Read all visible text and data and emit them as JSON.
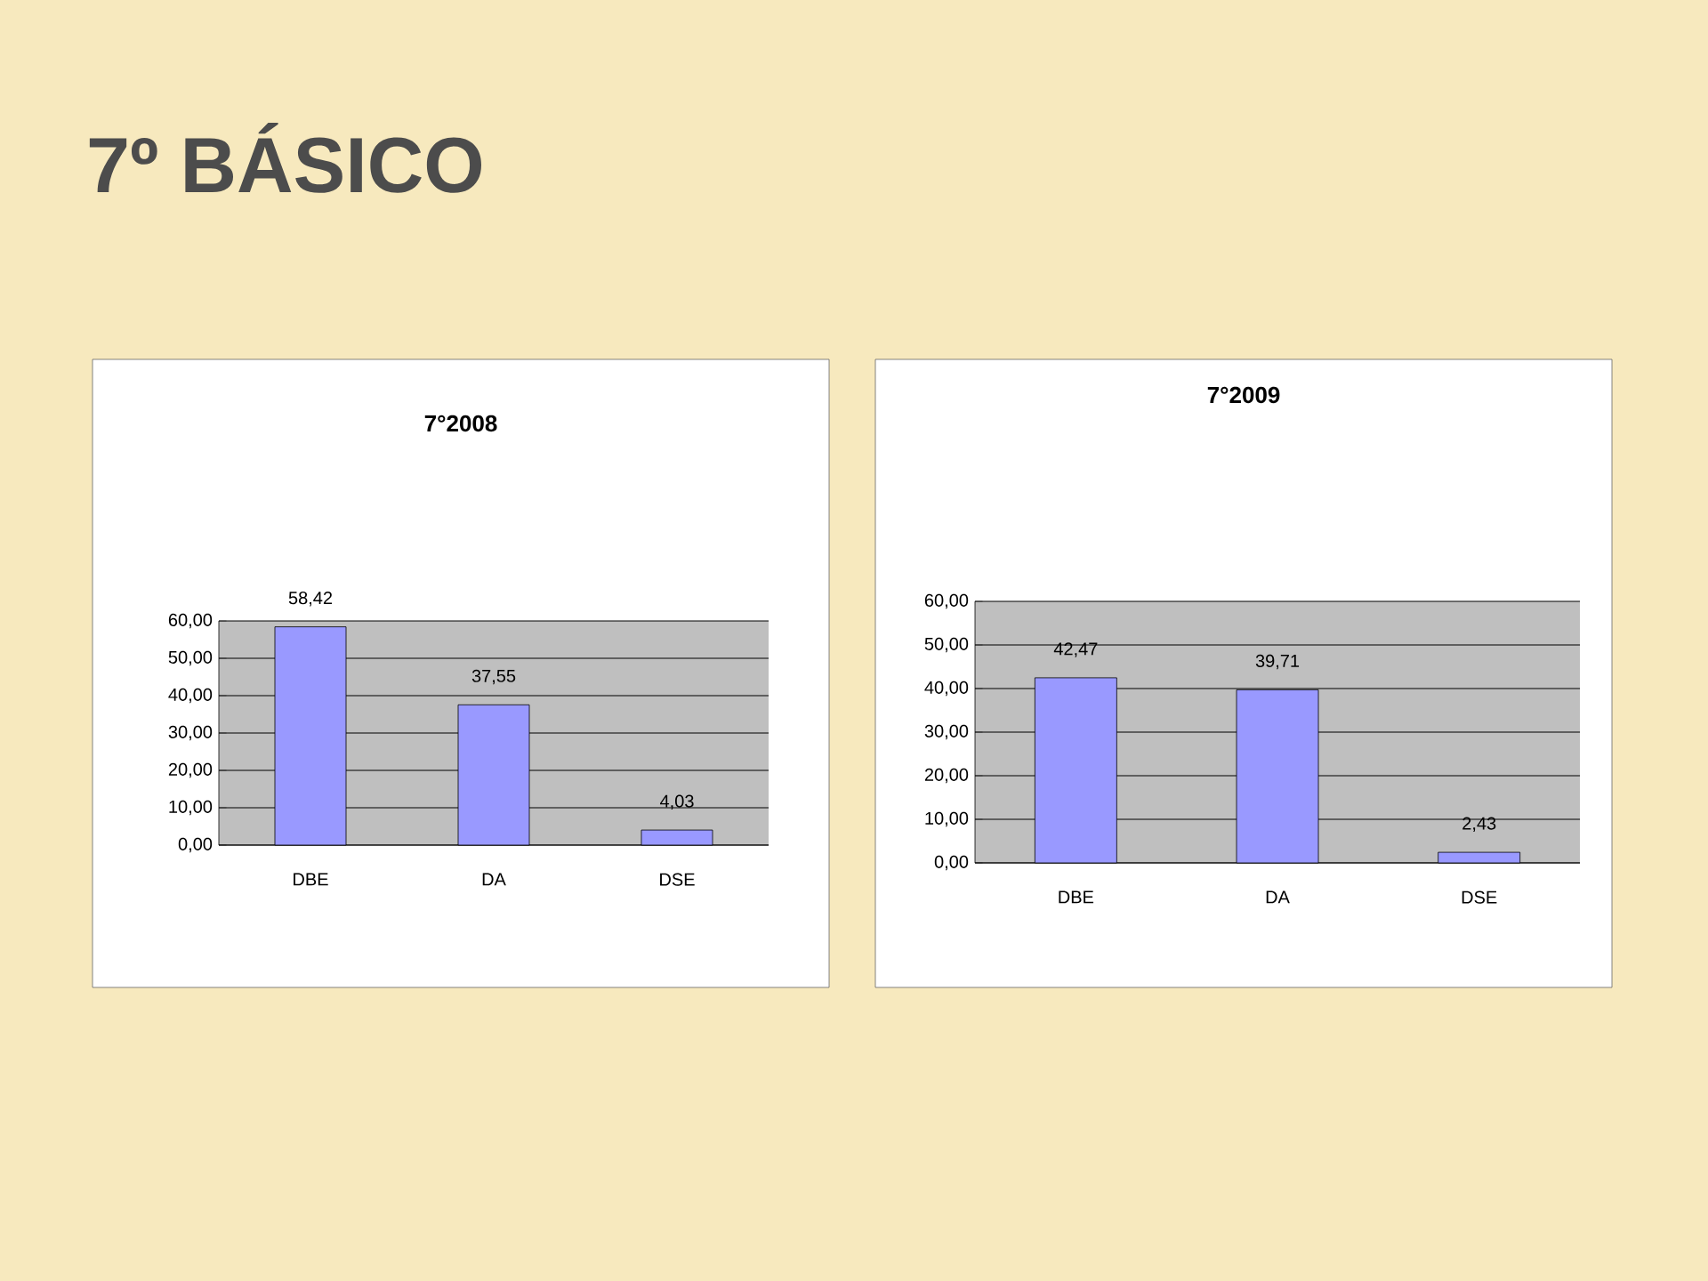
{
  "chart_data": [
    {
      "type": "other",
      "title": "7º BÁSICO"
    },
    {
      "type": "bar",
      "title": "7°2008",
      "categories": [
        "DBE",
        "DA",
        "DSE"
      ],
      "values": [
        58.42,
        37.55,
        4.03
      ],
      "value_labels": [
        "58,42",
        "37,55",
        "4,03"
      ],
      "color": "#9999ff",
      "ylim": [
        0,
        60
      ],
      "yticks": [
        {
          "value": 0,
          "label": "0,00"
        },
        {
          "value": 10,
          "label": "10,00"
        },
        {
          "value": 20,
          "label": "20,00"
        },
        {
          "value": 30,
          "label": "30,00"
        },
        {
          "value": 40,
          "label": "40,00"
        },
        {
          "value": 50,
          "label": "50,00"
        },
        {
          "value": 60,
          "label": "60,00"
        }
      ],
      "grid": "y"
    },
    {
      "type": "bar",
      "title": "7°2009",
      "categories": [
        "DBE",
        "DA",
        "DSE"
      ],
      "values": [
        42.47,
        39.71,
        2.43
      ],
      "value_labels": [
        "42,47",
        "39,71",
        "2,43"
      ],
      "color": "#9999ff",
      "ylim": [
        0,
        60
      ],
      "yticks": [
        {
          "value": 0,
          "label": "0,00"
        },
        {
          "value": 10,
          "label": "10,00"
        },
        {
          "value": 20,
          "label": "20,00"
        },
        {
          "value": 30,
          "label": "30,00"
        },
        {
          "value": 40,
          "label": "40,00"
        },
        {
          "value": 50,
          "label": "50,00"
        },
        {
          "value": 60,
          "label": "60,00"
        }
      ],
      "grid": "y"
    }
  ]
}
